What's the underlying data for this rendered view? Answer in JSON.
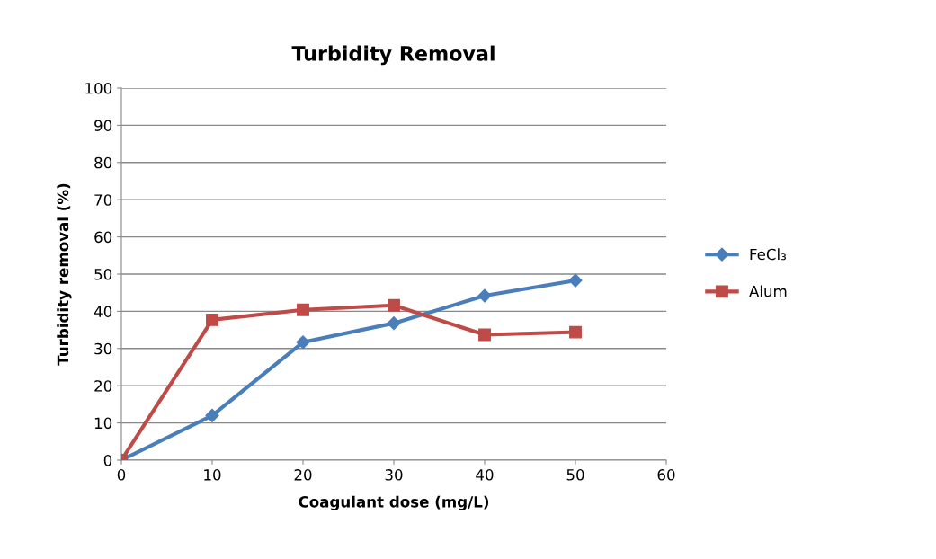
{
  "chart_data": {
    "type": "line",
    "title": "Turbidity Removal",
    "xlabel": "Coagulant dose (mg/L)",
    "ylabel": "Turbidity removal (%)",
    "x": [
      0,
      10,
      20,
      30,
      40,
      50
    ],
    "series": [
      {
        "name": "FeCl₃",
        "color": "#4a7ebb",
        "marker": "diamond",
        "values": [
          0,
          12,
          31.7,
          36.8,
          44.2,
          48.3
        ]
      },
      {
        "name": "Alum",
        "color": "#be4b48",
        "marker": "square",
        "values": [
          0,
          37.7,
          40.4,
          41.6,
          33.7,
          34.4
        ]
      }
    ],
    "xlim": [
      0,
      60
    ],
    "xticks": [
      0,
      10,
      20,
      30,
      40,
      50,
      60
    ],
    "ylim": [
      0,
      100
    ],
    "yticks": [
      0,
      10,
      20,
      30,
      40,
      50,
      60,
      70,
      80,
      90,
      100
    ],
    "grid": "y",
    "legend": "right"
  }
}
